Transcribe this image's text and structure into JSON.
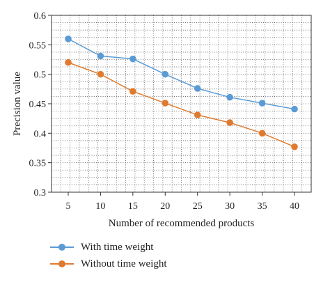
{
  "chart_data": {
    "type": "line",
    "title": "",
    "xlabel": "Number of recommended products",
    "ylabel": "Precision value",
    "x": [
      5,
      10,
      15,
      20,
      25,
      30,
      35,
      40
    ],
    "ylim": [
      0.3,
      0.6
    ],
    "yticks": [
      0.3,
      0.35,
      0.4,
      0.45,
      0.5,
      0.55,
      0.6
    ],
    "ytick_labels": [
      "0.3",
      "0.35",
      "0.4",
      "0.45",
      "0.5",
      "0.55",
      "0.6"
    ],
    "grid": true,
    "legend_position": "bottom-left",
    "series": [
      {
        "name": "With time weight",
        "color": "#5B9BD5",
        "values": [
          0.56,
          0.531,
          0.526,
          0.5,
          0.476,
          0.461,
          0.451,
          0.441
        ]
      },
      {
        "name": "Without time weight",
        "color": "#E07A2F",
        "values": [
          0.52,
          0.5,
          0.471,
          0.451,
          0.431,
          0.418,
          0.4,
          0.377
        ]
      }
    ]
  }
}
